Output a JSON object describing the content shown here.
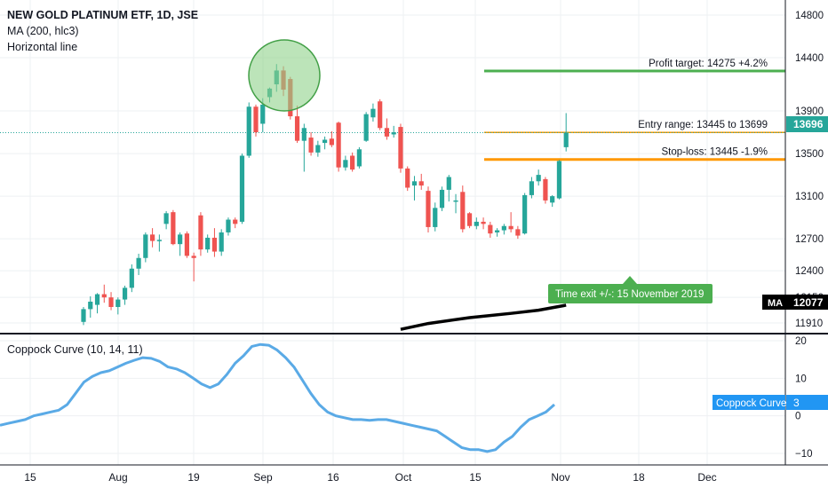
{
  "header": {
    "title": "NEW GOLD PLATINUM ETF, 1D, JSE",
    "indicator_1": "MA (200, hlc3)",
    "indicator_2": "Horizontal line"
  },
  "colors": {
    "up": "#26a69a",
    "down": "#ef5350",
    "profit_line": "#4caf50",
    "entry_line": "#ff9800",
    "stop_line": "#ff9800",
    "ma_line": "#000000",
    "coppock": "#5aaae6",
    "circle_fill": "#8fd28a",
    "circle_stroke": "#43a047",
    "price_badge": "#26a69a",
    "annotation_box": "#4caf50",
    "grid": "#eef0f3",
    "axis_text": "#131722"
  },
  "chart_data": [
    {
      "type": "candlestick",
      "title": "NEW GOLD PLATINUM ETF, 1D, JSE",
      "ylim": [
        11850,
        14950
      ],
      "y_ticks": [
        "14800",
        "14400",
        "13900",
        "13500",
        "13100",
        "12700",
        "12400",
        "12150",
        "11910"
      ],
      "x_ticks": [
        "15",
        "Aug",
        "19",
        "Sep",
        "16",
        "Oct",
        "15",
        "Nov",
        "18",
        "Dec"
      ],
      "candles": [
        {
          "o": 11920,
          "h": 12060,
          "l": 11890,
          "c": 12040
        },
        {
          "o": 12040,
          "h": 12160,
          "l": 11960,
          "c": 12110
        },
        {
          "o": 12080,
          "h": 12190,
          "l": 12000,
          "c": 12180
        },
        {
          "o": 12180,
          "h": 12270,
          "l": 12100,
          "c": 12150
        },
        {
          "o": 12150,
          "h": 12200,
          "l": 12030,
          "c": 12060
        },
        {
          "o": 12060,
          "h": 12150,
          "l": 11990,
          "c": 12130
        },
        {
          "o": 12130,
          "h": 12260,
          "l": 12080,
          "c": 12240
        },
        {
          "o": 12240,
          "h": 12460,
          "l": 12200,
          "c": 12420
        },
        {
          "o": 12420,
          "h": 12560,
          "l": 12360,
          "c": 12520
        },
        {
          "o": 12520,
          "h": 12760,
          "l": 12480,
          "c": 12740
        },
        {
          "o": 12740,
          "h": 12800,
          "l": 12620,
          "c": 12680
        },
        {
          "o": 12680,
          "h": 12740,
          "l": 12580,
          "c": 12690
        },
        {
          "o": 12840,
          "h": 12960,
          "l": 12790,
          "c": 12940
        },
        {
          "o": 12950,
          "h": 12970,
          "l": 12640,
          "c": 12650
        },
        {
          "o": 12650,
          "h": 12760,
          "l": 12540,
          "c": 12740
        },
        {
          "o": 12750,
          "h": 12770,
          "l": 12520,
          "c": 12540
        },
        {
          "o": 12540,
          "h": 12570,
          "l": 12300,
          "c": 12520
        },
        {
          "o": 12920,
          "h": 12950,
          "l": 12540,
          "c": 12600
        },
        {
          "o": 12600,
          "h": 12740,
          "l": 12570,
          "c": 12710
        },
        {
          "o": 12710,
          "h": 12800,
          "l": 12530,
          "c": 12580
        },
        {
          "o": 12580,
          "h": 12790,
          "l": 12540,
          "c": 12760
        },
        {
          "o": 12760,
          "h": 12900,
          "l": 12730,
          "c": 12880
        },
        {
          "o": 12880,
          "h": 12900,
          "l": 12800,
          "c": 12840
        },
        {
          "o": 12860,
          "h": 13500,
          "l": 12840,
          "c": 13480
        },
        {
          "o": 13480,
          "h": 13980,
          "l": 13460,
          "c": 13940
        },
        {
          "o": 13940,
          "h": 13960,
          "l": 13660,
          "c": 13700
        },
        {
          "o": 13780,
          "h": 14020,
          "l": 13700,
          "c": 13960
        },
        {
          "o": 14030,
          "h": 14120,
          "l": 13980,
          "c": 14110
        },
        {
          "o": 14150,
          "h": 14340,
          "l": 14080,
          "c": 14280
        },
        {
          "o": 14280,
          "h": 14320,
          "l": 14040,
          "c": 14100
        },
        {
          "o": 14200,
          "h": 14220,
          "l": 13820,
          "c": 13850
        },
        {
          "o": 13850,
          "h": 13950,
          "l": 13600,
          "c": 13620
        },
        {
          "o": 13620,
          "h": 13780,
          "l": 13330,
          "c": 13740
        },
        {
          "o": 13650,
          "h": 13700,
          "l": 13480,
          "c": 13510
        },
        {
          "o": 13510,
          "h": 13620,
          "l": 13470,
          "c": 13580
        },
        {
          "o": 13600,
          "h": 13660,
          "l": 13540,
          "c": 13630
        },
        {
          "o": 13640,
          "h": 13710,
          "l": 13560,
          "c": 13580
        },
        {
          "o": 13790,
          "h": 13800,
          "l": 13330,
          "c": 13370
        },
        {
          "o": 13370,
          "h": 13480,
          "l": 13340,
          "c": 13440
        },
        {
          "o": 13480,
          "h": 13510,
          "l": 13330,
          "c": 13350
        },
        {
          "o": 13380,
          "h": 13560,
          "l": 13360,
          "c": 13540
        },
        {
          "o": 13620,
          "h": 13890,
          "l": 13610,
          "c": 13870
        },
        {
          "o": 13840,
          "h": 13970,
          "l": 13800,
          "c": 13920
        },
        {
          "o": 13990,
          "h": 14010,
          "l": 13720,
          "c": 13740
        },
        {
          "o": 13740,
          "h": 13830,
          "l": 13630,
          "c": 13660
        },
        {
          "o": 13680,
          "h": 13760,
          "l": 13650,
          "c": 13700
        },
        {
          "o": 13750,
          "h": 13780,
          "l": 13320,
          "c": 13360
        },
        {
          "o": 13360,
          "h": 13380,
          "l": 13150,
          "c": 13180
        },
        {
          "o": 13200,
          "h": 13290,
          "l": 13060,
          "c": 13240
        },
        {
          "o": 13240,
          "h": 13310,
          "l": 13160,
          "c": 13200
        },
        {
          "o": 13150,
          "h": 13190,
          "l": 12760,
          "c": 12810
        },
        {
          "o": 12810,
          "h": 13040,
          "l": 12770,
          "c": 12990
        },
        {
          "o": 12990,
          "h": 13190,
          "l": 12960,
          "c": 13160
        },
        {
          "o": 13160,
          "h": 13300,
          "l": 13050,
          "c": 13280
        },
        {
          "o": 13060,
          "h": 13120,
          "l": 12940,
          "c": 13060
        },
        {
          "o": 13140,
          "h": 13200,
          "l": 12760,
          "c": 12790
        },
        {
          "o": 12940,
          "h": 12950,
          "l": 12800,
          "c": 12820
        },
        {
          "o": 12820,
          "h": 12900,
          "l": 12790,
          "c": 12860
        },
        {
          "o": 12860,
          "h": 12900,
          "l": 12790,
          "c": 12840
        },
        {
          "o": 12830,
          "h": 12860,
          "l": 12710,
          "c": 12750
        },
        {
          "o": 12760,
          "h": 12800,
          "l": 12720,
          "c": 12780
        },
        {
          "o": 12780,
          "h": 12840,
          "l": 12740,
          "c": 12820
        },
        {
          "o": 12820,
          "h": 12950,
          "l": 12760,
          "c": 12790
        },
        {
          "o": 12790,
          "h": 12820,
          "l": 12700,
          "c": 12730
        },
        {
          "o": 12750,
          "h": 13130,
          "l": 12740,
          "c": 13110
        },
        {
          "o": 13110,
          "h": 13280,
          "l": 13080,
          "c": 13240
        },
        {
          "o": 13240,
          "h": 13350,
          "l": 13200,
          "c": 13300
        },
        {
          "o": 13260,
          "h": 13280,
          "l": 13030,
          "c": 13060
        },
        {
          "o": 13040,
          "h": 13110,
          "l": 13000,
          "c": 13100
        },
        {
          "o": 13080,
          "h": 13440,
          "l": 13070,
          "c": 13430
        },
        {
          "o": 13560,
          "h": 13880,
          "l": 13520,
          "c": 13696
        }
      ],
      "ma_200": [
        {
          "bar": 46,
          "value": 11850
        },
        {
          "bar": 50,
          "value": 11905
        },
        {
          "bar": 56,
          "value": 11960
        },
        {
          "bar": 62,
          "value": 12000
        },
        {
          "bar": 66,
          "value": 12030
        },
        {
          "bar": 70,
          "value": 12077
        }
      ],
      "horizontal_lines": [
        {
          "value": 14275,
          "label": "Profit target: 14275 +4.2%"
        },
        {
          "value": 13699,
          "label": "Entry range: 13445 to 13699"
        },
        {
          "value": 13445,
          "label": "Stop-loss: 13445 -1.9%"
        }
      ],
      "last_price": "13696",
      "ma_badge": {
        "name": "MA",
        "value": "12077"
      },
      "annotation": "Time exit +/-: 15 November 2019"
    },
    {
      "type": "line",
      "title": "Coppock Curve (10, 14, 11)",
      "ylim": [
        -13,
        22
      ],
      "y_ticks": [
        "20",
        "10",
        "0",
        "−10"
      ],
      "series": [
        {
          "name": "Coppock Curve",
          "values": [
            -2.5,
            -2,
            -1.5,
            -1,
            0,
            0.5,
            1,
            1.5,
            3,
            6,
            9,
            10.5,
            11.5,
            12,
            13,
            14,
            14.8,
            15.5,
            15.3,
            14.5,
            13,
            12.5,
            11.5,
            10,
            8.5,
            7.5,
            8.5,
            11,
            14,
            16,
            18.5,
            19,
            18.8,
            17.5,
            15.5,
            13,
            9.5,
            6,
            3,
            1,
            0,
            -0.5,
            -1,
            -1,
            -1.2,
            -1,
            -1,
            -1.5,
            -2,
            -2.5,
            -3,
            -3.5,
            -4,
            -5.5,
            -7,
            -8.5,
            -9,
            -9,
            -9.5,
            -9,
            -7,
            -5.5,
            -3,
            -1,
            0,
            1,
            3
          ],
          "last_label": "3"
        }
      ]
    }
  ]
}
